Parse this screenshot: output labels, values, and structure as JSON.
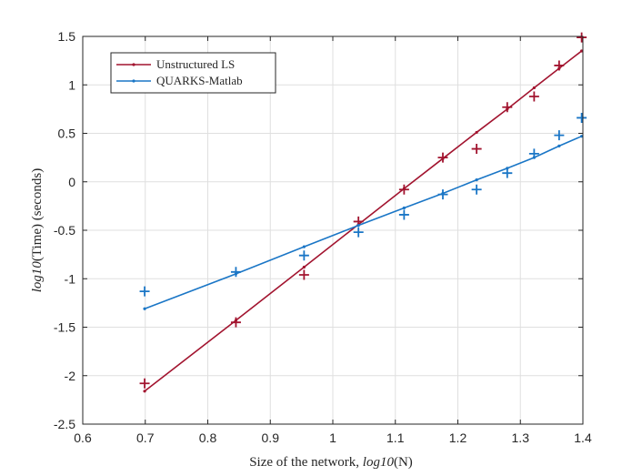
{
  "chart_data": {
    "type": "line",
    "title": "",
    "xlabel": {
      "prefix": "Size of the network, ",
      "italic": "log10",
      "suffix": "(N)"
    },
    "ylabel": {
      "italic": "log10",
      "suffix": "(Time)  (seconds)"
    },
    "xlim": [
      0.6,
      1.4
    ],
    "ylim": [
      -2.5,
      1.5
    ],
    "xticks": [
      0.6,
      0.7,
      0.8,
      0.9,
      1.0,
      1.1,
      1.2,
      1.3,
      1.4
    ],
    "xtick_labels": [
      "0.6",
      "0.7",
      "0.8",
      "0.9",
      "1",
      "1.1",
      "1.2",
      "1.3",
      "1.4"
    ],
    "yticks": [
      -2.5,
      -2.0,
      -1.5,
      -1.0,
      -0.5,
      0,
      0.5,
      1.0,
      1.5
    ],
    "ytick_labels": [
      "-2.5",
      "-2",
      "-1.5",
      "-1",
      "-0.5",
      "0",
      "0.5",
      "1",
      "1.5"
    ],
    "grid": true,
    "legend_position": "top-left",
    "series": [
      {
        "name": "Unstructured LS",
        "color": "#a2142f",
        "measured": {
          "x": [
            0.699,
            0.845,
            0.954,
            1.041,
            1.114,
            1.176,
            1.23,
            1.279,
            1.322,
            1.362,
            1.398
          ],
          "y": [
            -2.08,
            -1.45,
            -0.96,
            -0.41,
            -0.08,
            0.25,
            0.34,
            0.77,
            0.88,
            1.2,
            1.49
          ]
        },
        "fit": {
          "x": [
            0.699,
            0.845,
            0.954,
            1.041,
            1.114,
            1.176,
            1.23,
            1.279,
            1.322,
            1.362,
            1.398
          ],
          "y": [
            -2.16,
            -1.43,
            -0.88,
            -0.44,
            -0.07,
            0.24,
            0.51,
            0.75,
            0.97,
            1.17,
            1.35
          ]
        }
      },
      {
        "name": "QUARKS-Matlab",
        "color": "#1a76c6",
        "measured": {
          "x": [
            0.699,
            0.845,
            0.954,
            1.041,
            1.114,
            1.176,
            1.23,
            1.279,
            1.322,
            1.362,
            1.398
          ],
          "y": [
            -1.13,
            -0.93,
            -0.76,
            -0.52,
            -0.34,
            -0.13,
            -0.08,
            0.09,
            0.29,
            0.48,
            0.66
          ]
        },
        "fit": {
          "x": [
            0.699,
            0.845,
            0.954,
            1.041,
            1.114,
            1.176,
            1.23,
            1.279,
            1.322,
            1.362,
            1.398
          ],
          "y": [
            -1.31,
            -0.95,
            -0.67,
            -0.45,
            -0.27,
            -0.12,
            0.02,
            0.14,
            0.25,
            0.37,
            0.47
          ]
        }
      }
    ]
  }
}
